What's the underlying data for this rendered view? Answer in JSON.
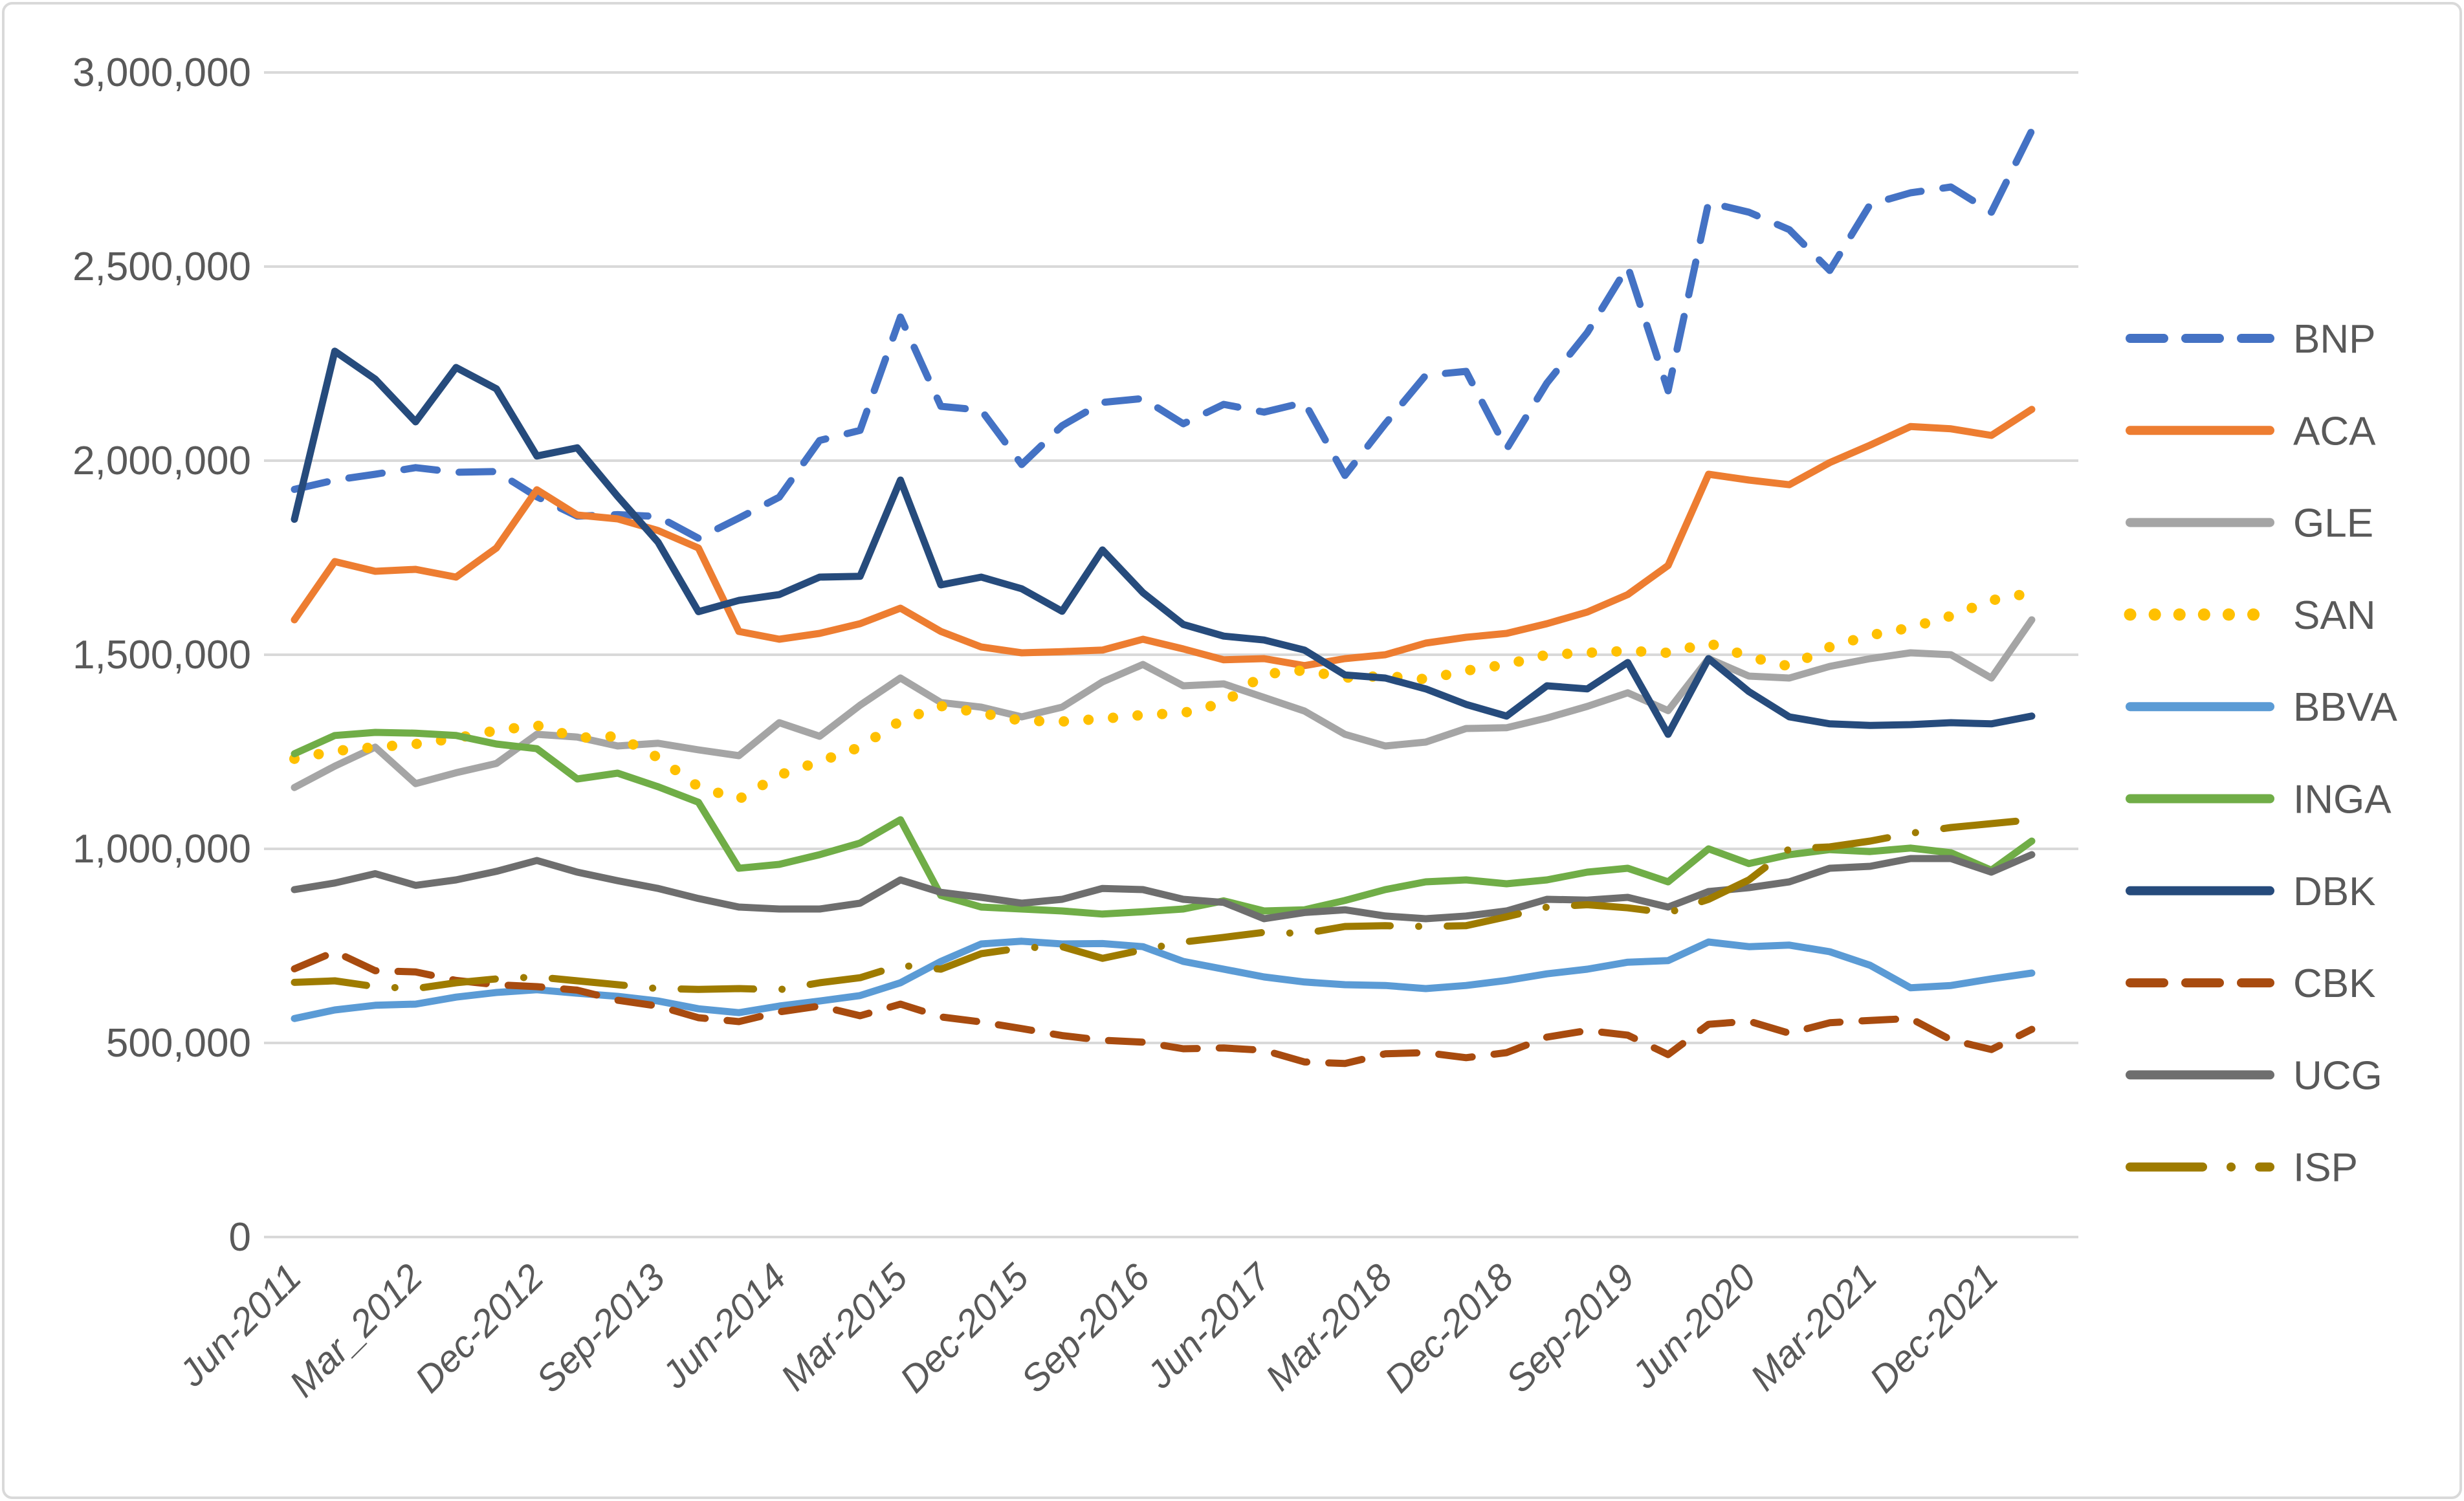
{
  "chart_data": {
    "type": "line",
    "title": "",
    "unit": "EUR thousands (total assets)",
    "legend_position": "right",
    "grid": true,
    "background": "#ffffff",
    "gridline_color": "#d9d9d9",
    "axis_text_color": "#595959",
    "y_axis": {
      "min": 0,
      "max": 3000000,
      "step": 500000,
      "tick_labels": [
        "3,000,000",
        "2,500,000",
        "2,000,000",
        "1,500,000",
        "1,000,000",
        "500,000",
        "0"
      ]
    },
    "x_tick_labels": [
      "Jun-2011",
      "Mar_2012",
      "Dec-2012",
      "Sep-2013",
      "Jun-2014",
      "Mar-2015",
      "Dec-2015",
      "Sep-2016",
      "Jun-2017",
      "Mar-2018",
      "Dec-2018",
      "Sep-2019",
      "Jun-2020",
      "Mar-2021",
      "Dec-2021"
    ],
    "categories": [
      "Jun-2011",
      "Sep-2011",
      "Dec-2011",
      "Mar_2012",
      "Jun-2012",
      "Sep-2012",
      "Dec-2012",
      "Mar-2013",
      "Jun-2013",
      "Sep-2013",
      "Dec-2013",
      "Mar-2014",
      "Jun-2014",
      "Sep-2014",
      "Dec-2014",
      "Mar-2015",
      "Jun-2015",
      "Sep-2015",
      "Dec-2015",
      "Mar-2016",
      "Jun-2016",
      "Sep-2016",
      "Dec-2016",
      "Mar-2017",
      "Jun-2017",
      "Sep-2017",
      "Dec-2017",
      "Mar-2018",
      "Jun-2018",
      "Sep-2018",
      "Dec-2018",
      "Mar-2019",
      "Jun-2019",
      "Sep-2019",
      "Dec-2019",
      "Mar-2020",
      "Jun-2020",
      "Sep-2020",
      "Dec-2020",
      "Mar-2021",
      "Jun-2021",
      "Sep-2021",
      "Dec-2021",
      "Mar-2022"
    ],
    "series": [
      {
        "name": "BNP",
        "color": "#4472c4",
        "style": "dashed",
        "values": [
          1926000,
          1950000,
          1965000,
          1982000,
          1970000,
          1972000,
          1907000,
          1857000,
          1861000,
          1856000,
          1800000,
          1852000,
          1906000,
          2052000,
          2078000,
          2370000,
          2140000,
          2130000,
          1990000,
          2090000,
          2150000,
          2160000,
          2095000,
          2145000,
          2125000,
          2150000,
          1962000,
          2095000,
          2220000,
          2230000,
          2030000,
          2200000,
          2330000,
          2500000,
          2180000,
          2665000,
          2640000,
          2595000,
          2490000,
          2660000,
          2690000,
          2705000,
          2640000,
          2850000
        ]
      },
      {
        "name": "ACA",
        "color": "#ed7d31",
        "style": "solid",
        "values": [
          1590000,
          1740000,
          1715000,
          1720000,
          1700000,
          1775000,
          1925000,
          1860000,
          1850000,
          1820000,
          1775000,
          1560000,
          1540000,
          1555000,
          1580000,
          1620000,
          1560000,
          1520000,
          1505000,
          1508000,
          1512000,
          1540000,
          1515000,
          1487000,
          1490000,
          1472000,
          1490000,
          1500000,
          1530000,
          1545000,
          1555000,
          1580000,
          1610000,
          1655000,
          1730000,
          1965000,
          1950000,
          1938000,
          1995000,
          2040000,
          2088000,
          2082000,
          2065000,
          2132000
        ]
      },
      {
        "name": "GLE",
        "color": "#a5a5a5",
        "style": "solid",
        "values": [
          1158000,
          1213000,
          1262000,
          1168000,
          1196000,
          1220000,
          1295000,
          1288000,
          1265000,
          1272000,
          1255000,
          1240000,
          1325000,
          1290000,
          1370000,
          1440000,
          1377000,
          1365000,
          1340000,
          1365000,
          1430000,
          1475000,
          1420000,
          1425000,
          1390000,
          1355000,
          1295000,
          1265000,
          1275000,
          1310000,
          1312000,
          1337000,
          1367000,
          1402000,
          1356000,
          1490000,
          1445000,
          1440000,
          1470000,
          1490000,
          1505000,
          1500000,
          1440000,
          1590000
        ]
      },
      {
        "name": "SAN",
        "color": "#ffc000",
        "style": "dotted",
        "values": [
          1232000,
          1252000,
          1262000,
          1270000,
          1285000,
          1305000,
          1318000,
          1286000,
          1290000,
          1235000,
          1160000,
          1128000,
          1190000,
          1225000,
          1262000,
          1330000,
          1368000,
          1350000,
          1330000,
          1328000,
          1335000,
          1345000,
          1350000,
          1376000,
          1450000,
          1460000,
          1441000,
          1445000,
          1437000,
          1459000,
          1475000,
          1500000,
          1505000,
          1510000,
          1505000,
          1530000,
          1495000,
          1470000,
          1520000,
          1550000,
          1570000,
          1600000,
          1640000,
          1660000
        ]
      },
      {
        "name": "BBVA",
        "color": "#5b9bd5",
        "style": "solid",
        "values": [
          563000,
          585000,
          597000,
          600000,
          618000,
          630000,
          637000,
          628000,
          620000,
          608000,
          588000,
          578000,
          595000,
          608000,
          622000,
          655000,
          710000,
          755000,
          762000,
          755000,
          756000,
          748000,
          710000,
          690000,
          670000,
          657000,
          650000,
          648000,
          640000,
          648000,
          661000,
          678000,
          690000,
          708000,
          712000,
          760000,
          748000,
          752000,
          735000,
          700000,
          642000,
          648000,
          665000,
          680000
        ]
      },
      {
        "name": "INGA",
        "color": "#70ad47",
        "style": "solid",
        "values": [
          1245000,
          1292000,
          1300000,
          1298000,
          1292000,
          1270000,
          1258000,
          1180000,
          1195000,
          1160000,
          1120000,
          950000,
          960000,
          985000,
          1015000,
          1075000,
          880000,
          850000,
          845000,
          840000,
          832000,
          838000,
          845000,
          866000,
          840000,
          843000,
          867000,
          895000,
          915000,
          920000,
          910000,
          920000,
          940000,
          950000,
          915000,
          1000000,
          962000,
          985000,
          998000,
          993000,
          1002000,
          990000,
          945000,
          1020000
        ]
      },
      {
        "name": "DBK",
        "color": "#264b7c",
        "style": "solid",
        "values": [
          1849000,
          2282000,
          2210000,
          2100000,
          2240000,
          2185000,
          2012000,
          2033000,
          1908000,
          1790000,
          1611000,
          1640000,
          1655000,
          1700000,
          1702000,
          1950000,
          1680000,
          1700000,
          1670000,
          1612000,
          1770000,
          1660000,
          1578000,
          1548000,
          1538000,
          1512000,
          1448000,
          1440000,
          1412000,
          1372000,
          1342000,
          1420000,
          1412000,
          1480000,
          1295000,
          1490000,
          1405000,
          1340000,
          1322000,
          1318000,
          1320000,
          1325000,
          1322000,
          1342000
        ]
      },
      {
        "name": "CBK",
        "color": "#a84b0f",
        "style": "dashed",
        "values": [
          691000,
          735000,
          686000,
          683000,
          661000,
          650000,
          645000,
          636000,
          610000,
          595000,
          565000,
          555000,
          580000,
          595000,
          570000,
          600000,
          567000,
          554000,
          537000,
          519000,
          507000,
          502000,
          485000,
          487000,
          481000,
          451000,
          447000,
          472000,
          475000,
          462000,
          475000,
          515000,
          532000,
          520000,
          470000,
          548000,
          556000,
          525000,
          552000,
          558000,
          563000,
          508000,
          483000,
          535000
        ]
      },
      {
        "name": "UCG",
        "color": "#6e6e6e",
        "style": "solid",
        "values": [
          895000,
          912000,
          936000,
          906000,
          920000,
          942000,
          970000,
          940000,
          918000,
          898000,
          872000,
          850000,
          845000,
          845000,
          860000,
          920000,
          888000,
          875000,
          860000,
          870000,
          898000,
          895000,
          870000,
          862000,
          820000,
          836000,
          843000,
          827000,
          820000,
          827000,
          840000,
          870000,
          868000,
          875000,
          850000,
          890000,
          900000,
          915000,
          950000,
          955000,
          975000,
          975000,
          940000,
          985000
        ]
      },
      {
        "name": "ISP",
        "color": "#9e7b00",
        "style": "longdashdot",
        "values": [
          656000,
          660000,
          645000,
          640000,
          655000,
          665000,
          670000,
          660000,
          650000,
          640000,
          638000,
          640000,
          637000,
          655000,
          668000,
          700000,
          690000,
          730000,
          745000,
          748000,
          718000,
          740000,
          760000,
          772000,
          785000,
          782000,
          800000,
          802000,
          800000,
          802000,
          825000,
          850000,
          856000,
          848000,
          835000,
          870000,
          920000,
          1000000,
          1005000,
          1020000,
          1040000,
          1055000,
          1065000,
          1075000
        ]
      }
    ]
  }
}
